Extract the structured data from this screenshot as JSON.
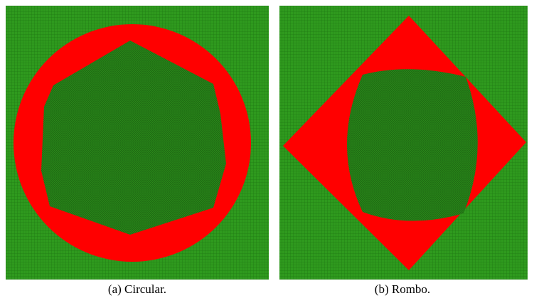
{
  "figure": {
    "panels": [
      {
        "caption": "(a) Circular."
      },
      {
        "caption": "(b) Rombo."
      }
    ]
  }
}
